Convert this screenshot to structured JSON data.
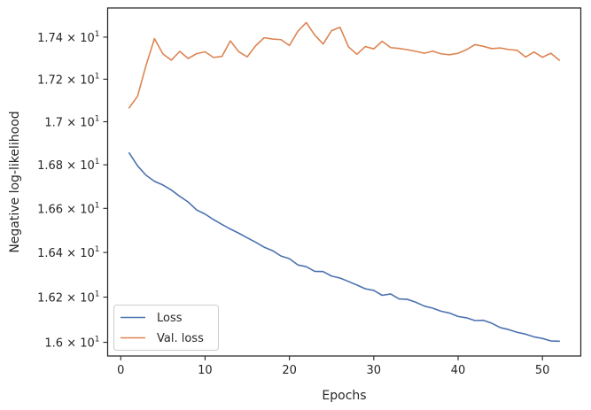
{
  "chart_data": {
    "type": "line",
    "xlabel": "Epochs",
    "ylabel": "Negative log-likelihood",
    "xlim": [
      -1.55,
      54.55
    ],
    "ylim": [
      15.94,
      17.54
    ],
    "yscale": "log",
    "xticks": [
      0,
      10,
      20,
      30,
      40,
      50
    ],
    "xtick_labels": [
      "0",
      "10",
      "20",
      "30",
      "40",
      "50"
    ],
    "yticks": [
      16.0,
      16.2,
      16.4,
      16.6,
      16.8,
      17.0,
      17.2,
      17.4
    ],
    "ytick_mantissas": [
      "1.6",
      "1.62",
      "1.64",
      "1.66",
      "1.68",
      "1.7",
      "1.72",
      "1.74"
    ],
    "ytick_base": "× 10",
    "ytick_exp": "1",
    "grid": false,
    "legend_position": "lower-left",
    "x": [
      1,
      2,
      3,
      4,
      5,
      6,
      7,
      8,
      9,
      10,
      11,
      12,
      13,
      14,
      15,
      16,
      17,
      18,
      19,
      20,
      21,
      22,
      23,
      24,
      25,
      26,
      27,
      28,
      29,
      30,
      31,
      32,
      33,
      34,
      35,
      36,
      37,
      38,
      39,
      40,
      41,
      42,
      43,
      44,
      45,
      46,
      47,
      48,
      49,
      50,
      51,
      52
    ],
    "series": [
      {
        "name": "Loss",
        "color": "#4c72b0",
        "values": [
          16.855,
          16.795,
          16.752,
          16.724,
          16.707,
          16.684,
          16.655,
          16.629,
          16.593,
          16.574,
          16.549,
          16.527,
          16.506,
          16.487,
          16.466,
          16.446,
          16.424,
          16.408,
          16.384,
          16.372,
          16.344,
          16.336,
          16.315,
          16.314,
          16.294,
          16.285,
          16.27,
          16.254,
          16.237,
          16.23,
          16.208,
          16.214,
          16.192,
          16.19,
          16.177,
          16.16,
          16.151,
          16.137,
          16.129,
          16.114,
          16.108,
          16.096,
          16.097,
          16.084,
          16.065,
          16.056,
          16.044,
          16.036,
          16.024,
          16.017,
          16.006,
          16.005
        ]
      },
      {
        "name": "Val. loss",
        "color": "#dd8452",
        "values": [
          17.065,
          17.12,
          17.265,
          17.393,
          17.32,
          17.29,
          17.332,
          17.298,
          17.321,
          17.33,
          17.303,
          17.308,
          17.382,
          17.33,
          17.306,
          17.359,
          17.397,
          17.391,
          17.388,
          17.36,
          17.428,
          17.47,
          17.41,
          17.367,
          17.431,
          17.447,
          17.354,
          17.318,
          17.355,
          17.344,
          17.38,
          17.35,
          17.346,
          17.34,
          17.332,
          17.323,
          17.333,
          17.32,
          17.316,
          17.323,
          17.34,
          17.364,
          17.356,
          17.345,
          17.348,
          17.341,
          17.337,
          17.305,
          17.329,
          17.304,
          17.323,
          17.29
        ]
      }
    ]
  }
}
